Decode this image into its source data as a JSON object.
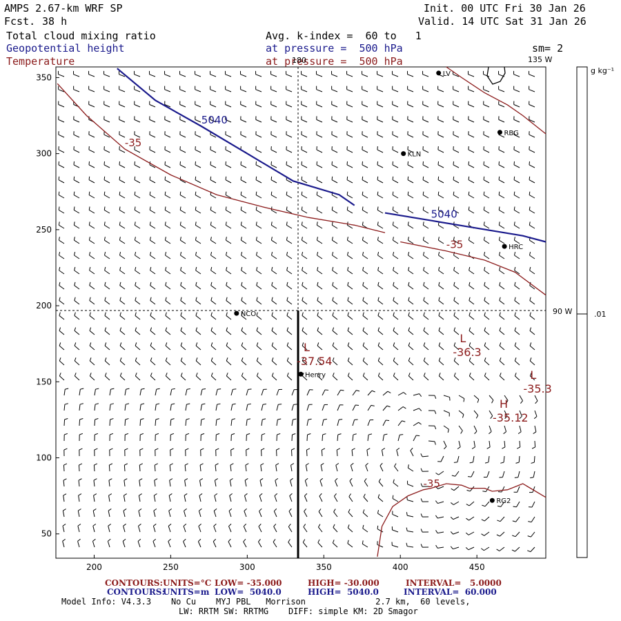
{
  "header": {
    "model": "AMPS 2.67-km WRF SP",
    "fcst_label": "Fcst.",
    "fcst_value": "38 h",
    "init": "Init. 00 UTC Fri 30 Jan 26",
    "valid": "Valid. 14 UTC Sat 31 Jan 26",
    "field1": "Total cloud mixing ratio",
    "field2": "Geopotential height",
    "field3": "Temperature",
    "avg": "Avg. k-index =  60 to   1",
    "pressure1": "at pressure =  500 hPa",
    "pressure2": "at pressure =  500 hPa",
    "sm": "sm= 2"
  },
  "colors": {
    "height": "#1a1a8c",
    "temperature": "#8b1a1a"
  },
  "map": {
    "x_ticks": [
      200,
      250,
      300,
      350,
      400,
      450
    ],
    "y_ticks": [
      50,
      100,
      150,
      200,
      250,
      300,
      350
    ],
    "lon_labels": {
      "top": "180",
      "top_right": "135 W",
      "right": "90 W"
    },
    "colorbar_unit": "g kg⁻¹",
    "colorbar_value": ".01",
    "stations": [
      {
        "name": "NCO",
        "x": 293,
        "y": 195
      },
      {
        "name": "KLN",
        "x": 402,
        "y": 300
      },
      {
        "name": "RBG",
        "x": 465,
        "y": 314
      },
      {
        "name": "HRC",
        "x": 468,
        "y": 239
      },
      {
        "name": "Henry",
        "x": 335,
        "y": 155
      },
      {
        "name": "RG2",
        "x": 460,
        "y": 72
      },
      {
        "name": "LV",
        "x": 425,
        "y": 353
      }
    ],
    "height_contours": [
      {
        "label": "5040",
        "points": [
          [
            215,
            356
          ],
          [
            240,
            335
          ],
          [
            270,
            318
          ],
          [
            300,
            300
          ],
          [
            330,
            282
          ],
          [
            360,
            273
          ],
          [
            370,
            266
          ]
        ]
      },
      {
        "label": "5040",
        "points": [
          [
            390,
            261
          ],
          [
            420,
            256
          ],
          [
            450,
            251
          ],
          [
            480,
            246
          ],
          [
            495,
            242
          ]
        ]
      }
    ],
    "temp_contours": [
      {
        "label": "-35",
        "points": [
          [
            176,
            346
          ],
          [
            195,
            325
          ],
          [
            220,
            303
          ],
          [
            250,
            286
          ],
          [
            280,
            273
          ],
          [
            310,
            265
          ],
          [
            340,
            258
          ],
          [
            370,
            253
          ],
          [
            390,
            248
          ]
        ]
      },
      {
        "label": "-35",
        "points": [
          [
            400,
            242
          ],
          [
            430,
            236
          ],
          [
            455,
            230
          ],
          [
            475,
            222
          ],
          [
            495,
            207
          ]
        ]
      },
      {
        "label": "",
        "points": [
          [
            430,
            357
          ],
          [
            440,
            350
          ],
          [
            455,
            340
          ],
          [
            470,
            332
          ],
          [
            480,
            325
          ],
          [
            495,
            313
          ]
        ]
      },
      {
        "label": "-35",
        "points": [
          [
            385,
            35
          ],
          [
            388,
            55
          ],
          [
            395,
            68
          ],
          [
            405,
            75
          ],
          [
            415,
            79
          ],
          [
            420,
            80
          ],
          [
            430,
            83
          ],
          [
            440,
            82
          ],
          [
            445,
            80
          ],
          [
            455,
            80
          ],
          [
            460,
            78
          ],
          [
            470,
            79
          ],
          [
            480,
            83
          ],
          [
            495,
            74
          ]
        ]
      }
    ],
    "extrema": [
      {
        "type": "L",
        "value": "-37.54",
        "x": 335,
        "y": 170
      },
      {
        "type": "L",
        "value": "-36.3",
        "x": 437,
        "y": 176
      },
      {
        "type": "L",
        "value": "-35.3",
        "x": 483,
        "y": 152
      },
      {
        "type": "H",
        "value": "-35.12",
        "x": 463,
        "y": 133
      }
    ]
  },
  "footer": {
    "line1_label": "CONTOURS:",
    "line1_units": "UNITS=°C",
    "line1_low": "LOW= -35.000",
    "line1_high": "HIGH= -30.000",
    "line1_interval": "INTERVAL=   5.0000",
    "line2_label": "CONTOURS:",
    "line2_units": "UNITS=m",
    "line2_low": "LOW=  5040.0",
    "line2_high": "HIGH=  5040.0",
    "line2_interval": "INTERVAL=  60.000",
    "model_info": "Model Info: V4.3.3    No Cu    MYJ PBL   Morrison              2.7 km,  60 levels,",
    "physics": "LW: RRTM SW: RRTMG    DIFF: simple KM: 2D Smagor"
  }
}
